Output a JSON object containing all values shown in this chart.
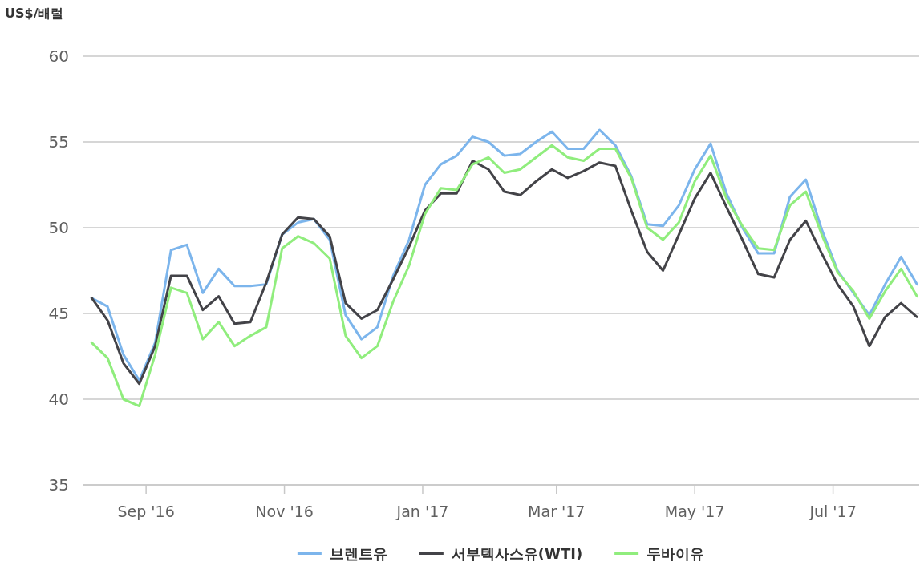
{
  "chart_data": {
    "type": "line",
    "ylabel": "US$/배럴",
    "x": [
      "2016-08-08",
      "2016-08-15",
      "2016-08-22",
      "2016-08-29",
      "2016-09-05",
      "2016-09-12",
      "2016-09-19",
      "2016-09-26",
      "2016-10-03",
      "2016-10-10",
      "2016-10-17",
      "2016-10-24",
      "2016-10-31",
      "2016-11-07",
      "2016-11-14",
      "2016-11-21",
      "2016-11-28",
      "2016-12-05",
      "2016-12-12",
      "2016-12-19",
      "2016-12-26",
      "2017-01-02",
      "2017-01-09",
      "2017-01-16",
      "2017-01-23",
      "2017-01-30",
      "2017-02-06",
      "2017-02-13",
      "2017-02-20",
      "2017-02-27",
      "2017-03-06",
      "2017-03-13",
      "2017-03-20",
      "2017-03-27",
      "2017-04-03",
      "2017-04-10",
      "2017-04-17",
      "2017-04-24",
      "2017-05-01",
      "2017-05-08",
      "2017-05-15",
      "2017-05-22",
      "2017-05-29",
      "2017-06-05",
      "2017-06-12",
      "2017-06-19",
      "2017-06-26",
      "2017-07-03",
      "2017-07-10",
      "2017-07-17",
      "2017-07-24",
      "2017-07-31",
      "2017-08-07"
    ],
    "series": [
      {
        "name": "브렌트유",
        "color": "#7cb5ec",
        "values": [
          45.9,
          45.4,
          42.6,
          41.1,
          43.3,
          48.7,
          49.0,
          46.2,
          47.6,
          46.6,
          46.6,
          46.7,
          49.6,
          50.3,
          50.5,
          49.3,
          44.9,
          43.5,
          44.2,
          47.2,
          49.3,
          52.5,
          53.7,
          54.2,
          55.3,
          55.0,
          54.2,
          54.3,
          55.0,
          55.6,
          54.6,
          54.6,
          55.7,
          54.8,
          53.0,
          50.2,
          50.1,
          51.3,
          53.4,
          54.9,
          52.0,
          50.0,
          48.5,
          48.5,
          51.8,
          52.8,
          49.9,
          47.5,
          46.2,
          44.9,
          46.7,
          48.3,
          46.7
        ]
      },
      {
        "name": "서부텍사스유(WTI)",
        "color": "#434348",
        "values": [
          45.9,
          44.6,
          42.1,
          40.9,
          43.1,
          47.2,
          47.2,
          45.2,
          46.0,
          44.4,
          44.5,
          46.8,
          49.6,
          50.6,
          50.5,
          49.5,
          45.6,
          44.7,
          45.2,
          47.0,
          48.9,
          51.0,
          52.0,
          52.0,
          53.9,
          53.4,
          52.1,
          51.9,
          52.7,
          53.4,
          52.9,
          53.3,
          53.8,
          53.6,
          51.0,
          48.6,
          47.5,
          49.6,
          51.7,
          53.2,
          51.2,
          49.3,
          47.3,
          47.1,
          49.3,
          50.4,
          48.5,
          46.7,
          45.4,
          43.1,
          44.8,
          45.6,
          44.8
        ]
      },
      {
        "name": "두바이유",
        "color": "#90ed7d",
        "values": [
          43.3,
          42.4,
          40.0,
          39.6,
          42.6,
          46.5,
          46.2,
          43.5,
          44.5,
          43.1,
          43.7,
          44.2,
          48.8,
          49.5,
          49.1,
          48.2,
          43.7,
          42.4,
          43.1,
          45.7,
          47.8,
          50.8,
          52.3,
          52.2,
          53.7,
          54.1,
          53.2,
          53.4,
          54.1,
          54.8,
          54.1,
          53.9,
          54.6,
          54.6,
          52.9,
          50.0,
          49.3,
          50.3,
          52.7,
          54.2,
          51.7,
          50.1,
          48.8,
          48.7,
          51.3,
          52.1,
          49.6,
          47.4,
          46.3,
          44.7,
          46.3,
          47.6,
          46.0
        ]
      }
    ],
    "xlim": [
      "2016-08-04",
      "2017-08-08"
    ],
    "xticks": [
      {
        "value": "2016-09-01",
        "label": "Sep '16"
      },
      {
        "value": "2016-11-01",
        "label": "Nov '16"
      },
      {
        "value": "2017-01-01",
        "label": "Jan '17"
      },
      {
        "value": "2017-03-01",
        "label": "Mar '17"
      },
      {
        "value": "2017-05-01",
        "label": "May '17"
      },
      {
        "value": "2017-07-01",
        "label": "Jul '17"
      }
    ],
    "ylim": [
      35,
      60
    ],
    "yticks": [
      35,
      40,
      45,
      50,
      55,
      60
    ],
    "grid": "y",
    "legend": "bottom",
    "marker": "none",
    "line_style": "solid"
  }
}
